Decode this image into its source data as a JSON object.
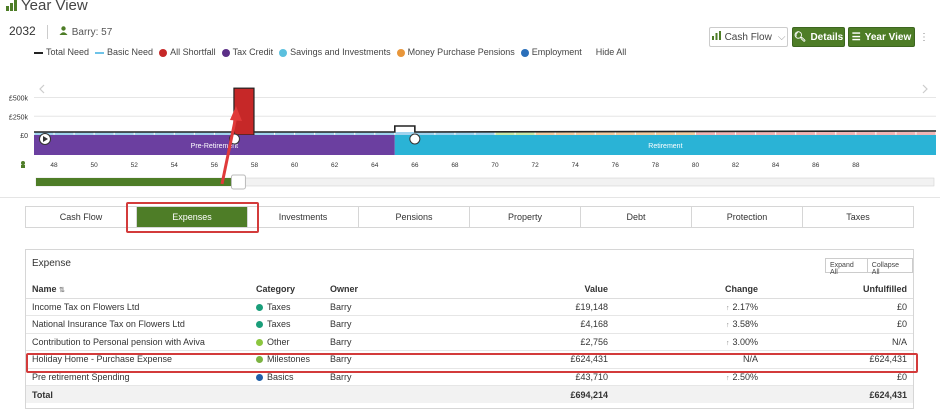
{
  "header": {
    "title": "Year View",
    "year": "2032",
    "person": "Barry: 57"
  },
  "legend": [
    {
      "label": "Total Need",
      "color": "#222222",
      "kind": "line"
    },
    {
      "label": "Basic Need",
      "color": "#6ec3e8",
      "kind": "line"
    },
    {
      "label": "All Shortfall",
      "color": "#c62828",
      "kind": "dot"
    },
    {
      "label": "Tax Credit",
      "color": "#5b2f87",
      "kind": "dot"
    },
    {
      "label": "Savings and Investments",
      "color": "#5bc0de",
      "kind": "dot"
    },
    {
      "label": "Money Purchase Pensions",
      "color": "#e8963a",
      "kind": "dot"
    },
    {
      "label": "Employment",
      "color": "#2a6fba",
      "kind": "dot"
    }
  ],
  "hide_all_label": "Hide All",
  "toolbar": {
    "cashflow_label": "Cash Flow",
    "details_label": "Details",
    "yearview_label": "Year View",
    "more": "⋮"
  },
  "chart_data": {
    "type": "bar",
    "y_tick_labels": [
      "£500k",
      "£250k",
      "£0"
    ],
    "x_ticks": [
      48,
      50,
      52,
      54,
      56,
      58,
      60,
      62,
      64,
      66,
      68,
      70,
      72,
      74,
      76,
      78,
      80,
      82,
      84,
      86,
      88
    ],
    "x_range": [
      47,
      92
    ],
    "y_range": [
      0,
      600000
    ],
    "selected_age": 57,
    "shortfall_spike": {
      "age": 57,
      "value": 624431
    },
    "phases": [
      {
        "label": "Pre-Retirement",
        "from_age": 47,
        "to_age": 65,
        "color": "#6b3fa0"
      },
      {
        "label": "Retirement",
        "from_age": 65,
        "to_age": 92,
        "color": "#2ab3d6"
      }
    ],
    "grid": true
  },
  "tabs": [
    {
      "label": "Cash Flow",
      "active": false
    },
    {
      "label": "Expenses",
      "active": true
    },
    {
      "label": "Investments",
      "active": false
    },
    {
      "label": "Pensions",
      "active": false
    },
    {
      "label": "Property",
      "active": false
    },
    {
      "label": "Debt",
      "active": false
    },
    {
      "label": "Protection",
      "active": false
    },
    {
      "label": "Taxes",
      "active": false
    }
  ],
  "panel": {
    "title": "Expense",
    "expand_all": "Expand All",
    "collapse_all": "Collapse All",
    "columns": {
      "name": "Name",
      "sort": "⇅",
      "category": "Category",
      "owner": "Owner",
      "value": "Value",
      "change": "Change",
      "unfulfilled": "Unfulfilled"
    },
    "rows": [
      {
        "name": "Income Tax on Flowers Ltd",
        "category": "Taxes",
        "cat_color": "#1a9e7a",
        "owner": "Barry",
        "value": "£19,148",
        "change": "2.17%",
        "change_up": true,
        "unfulfilled": "£0"
      },
      {
        "name": "National Insurance Tax on Flowers Ltd",
        "category": "Taxes",
        "cat_color": "#1a9e7a",
        "owner": "Barry",
        "value": "£4,168",
        "change": "3.58%",
        "change_up": true,
        "unfulfilled": "£0"
      },
      {
        "name": "Contribution to Personal pension with Aviva",
        "category": "Other",
        "cat_color": "#8cc63f",
        "owner": "Barry",
        "value": "£2,756",
        "change": "3.00%",
        "change_up": true,
        "unfulfilled": "N/A"
      },
      {
        "name": "Holiday Home - Purchase Expense",
        "category": "Milestones",
        "cat_color": "#7cb342",
        "owner": "Barry",
        "value": "£624,431",
        "change": "N/A",
        "change_up": false,
        "unfulfilled": "£624,431"
      },
      {
        "name": "Pre retirement Spending",
        "category": "Basics",
        "cat_color": "#1f5fa8",
        "owner": "Barry",
        "value": "£43,710",
        "change": "2.50%",
        "change_up": true,
        "unfulfilled": "£0"
      }
    ],
    "total": {
      "label": "Total",
      "value": "£694,214",
      "unfulfilled": "£624,431"
    }
  }
}
